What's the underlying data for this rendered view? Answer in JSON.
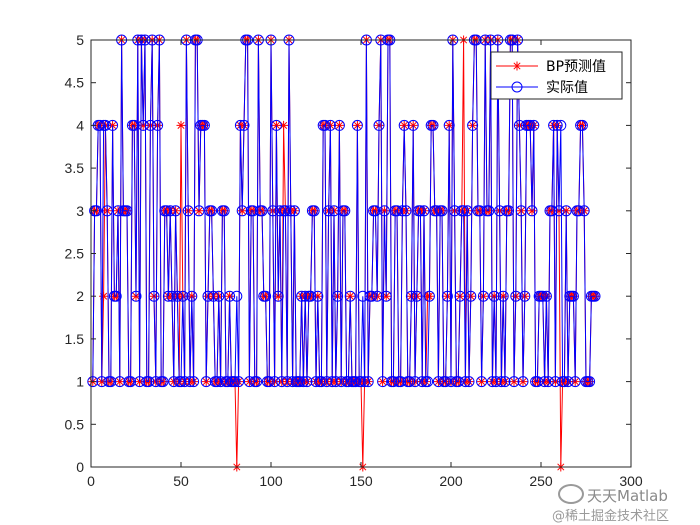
{
  "chart_data": {
    "type": "line",
    "title": "",
    "xlabel": "",
    "ylabel": "",
    "xlim": [
      0,
      300
    ],
    "ylim": [
      0,
      5
    ],
    "xticks": [
      "0",
      "50",
      "100",
      "150",
      "200",
      "250",
      "300"
    ],
    "yticks": [
      "0",
      "0.5",
      "1",
      "1.5",
      "2",
      "2.5",
      "3",
      "3.5",
      "4",
      "4.5",
      "5"
    ],
    "grid": false,
    "legend_position": "top-right",
    "series": [
      {
        "name": "BP预测值",
        "color": "#ff0000",
        "marker": "asterisk",
        "values": [
          1,
          3,
          3,
          4,
          4,
          1,
          2,
          4,
          3,
          1,
          1,
          4,
          2,
          2,
          3,
          1,
          5,
          3,
          3,
          3,
          1,
          1,
          4,
          4,
          2,
          5,
          1,
          5,
          4,
          5,
          1,
          1,
          4,
          5,
          2,
          1,
          4,
          5,
          1,
          1,
          3,
          3,
          2,
          3,
          2,
          1,
          3,
          2,
          1,
          4,
          2,
          1,
          5,
          3,
          1,
          2,
          1,
          5,
          5,
          3,
          4,
          4,
          4,
          1,
          2,
          3,
          3,
          2,
          1,
          1,
          2,
          1,
          3,
          3,
          1,
          1,
          2,
          1,
          1,
          1,
          0,
          1,
          4,
          3,
          4,
          5,
          5,
          1,
          3,
          3,
          1,
          1,
          5,
          3,
          3,
          2,
          2,
          1,
          1,
          5,
          3,
          1,
          4,
          2,
          3,
          1,
          4,
          3,
          1,
          5,
          3,
          1,
          3,
          1,
          1,
          1,
          2,
          1,
          2,
          1,
          2,
          2,
          3,
          3,
          1,
          2,
          1,
          1,
          4,
          4,
          1,
          3,
          4,
          1,
          3,
          1,
          2,
          4,
          1,
          3,
          3,
          1,
          1,
          2,
          1,
          1,
          1,
          4,
          1,
          1,
          0,
          1,
          5,
          1,
          2,
          2,
          3,
          3,
          2,
          4,
          5,
          1,
          3,
          2,
          5,
          5,
          1,
          1,
          3,
          3,
          1,
          1,
          3,
          4,
          3,
          1,
          1,
          2,
          4,
          1,
          2,
          3,
          3,
          1,
          3,
          1,
          2,
          2,
          4,
          4,
          3,
          3,
          1,
          3,
          3,
          1,
          1,
          2,
          4,
          1,
          5,
          3,
          1,
          1,
          2,
          3,
          5,
          1,
          3,
          1,
          2,
          4,
          5,
          5,
          3,
          3,
          1,
          2,
          5,
          3,
          3,
          5,
          1,
          2,
          1,
          5,
          3,
          1,
          2,
          1,
          3,
          3,
          5,
          5,
          1,
          2,
          5,
          4,
          3,
          1,
          2,
          4,
          4,
          4,
          3,
          4,
          1,
          1,
          2,
          2,
          2,
          1,
          2,
          1,
          3,
          3,
          4,
          1,
          4,
          3,
          0,
          1,
          1,
          3,
          1,
          2,
          2,
          2,
          1,
          3,
          3,
          4,
          4,
          3,
          1,
          1,
          1,
          2,
          2,
          2
        ]
      },
      {
        "name": "实际值",
        "color": "#0000ff",
        "marker": "circle",
        "values": [
          1,
          3,
          3,
          4,
          4,
          1,
          4,
          4,
          3,
          1,
          1,
          4,
          2,
          2,
          3,
          1,
          5,
          3,
          3,
          3,
          1,
          1,
          4,
          4,
          2,
          5,
          1,
          5,
          4,
          5,
          1,
          1,
          4,
          5,
          2,
          1,
          4,
          5,
          1,
          1,
          3,
          3,
          2,
          3,
          2,
          1,
          3,
          2,
          1,
          1,
          2,
          1,
          5,
          3,
          1,
          2,
          1,
          5,
          5,
          3,
          4,
          4,
          4,
          1,
          2,
          3,
          3,
          2,
          1,
          1,
          2,
          1,
          3,
          3,
          1,
          1,
          2,
          1,
          1,
          1,
          2,
          1,
          4,
          3,
          4,
          5,
          5,
          1,
          3,
          3,
          1,
          1,
          5,
          3,
          3,
          2,
          2,
          1,
          1,
          5,
          3,
          1,
          4,
          2,
          3,
          1,
          3,
          3,
          1,
          5,
          3,
          1,
          3,
          1,
          1,
          1,
          2,
          1,
          2,
          1,
          2,
          2,
          3,
          3,
          1,
          2,
          1,
          1,
          4,
          4,
          1,
          3,
          4,
          1,
          3,
          1,
          2,
          4,
          1,
          3,
          3,
          1,
          1,
          2,
          1,
          1,
          1,
          4,
          1,
          1,
          2,
          1,
          5,
          1,
          2,
          2,
          3,
          3,
          2,
          4,
          5,
          1,
          3,
          2,
          5,
          5,
          1,
          1,
          3,
          3,
          1,
          1,
          3,
          4,
          3,
          1,
          1,
          2,
          4,
          1,
          2,
          3,
          3,
          1,
          3,
          1,
          1,
          2,
          4,
          4,
          3,
          3,
          1,
          3,
          3,
          1,
          1,
          2,
          4,
          1,
          5,
          3,
          1,
          1,
          2,
          3,
          3,
          1,
          3,
          1,
          2,
          4,
          5,
          5,
          3,
          3,
          1,
          2,
          5,
          3,
          3,
          5,
          1,
          2,
          1,
          5,
          3,
          1,
          2,
          1,
          3,
          3,
          5,
          5,
          1,
          2,
          5,
          4,
          3,
          1,
          2,
          4,
          4,
          4,
          3,
          4,
          1,
          1,
          2,
          2,
          2,
          1,
          2,
          1,
          3,
          3,
          4,
          1,
          4,
          3,
          4,
          1,
          1,
          3,
          1,
          2,
          2,
          2,
          1,
          3,
          3,
          4,
          4,
          3,
          1,
          1,
          1,
          2,
          2,
          2
        ]
      }
    ]
  },
  "legend": {
    "items": [
      "BP预测值",
      "实际值"
    ]
  },
  "watermark": {
    "line1": "天天Matlab",
    "line2": "@稀土掘金技术社区"
  }
}
